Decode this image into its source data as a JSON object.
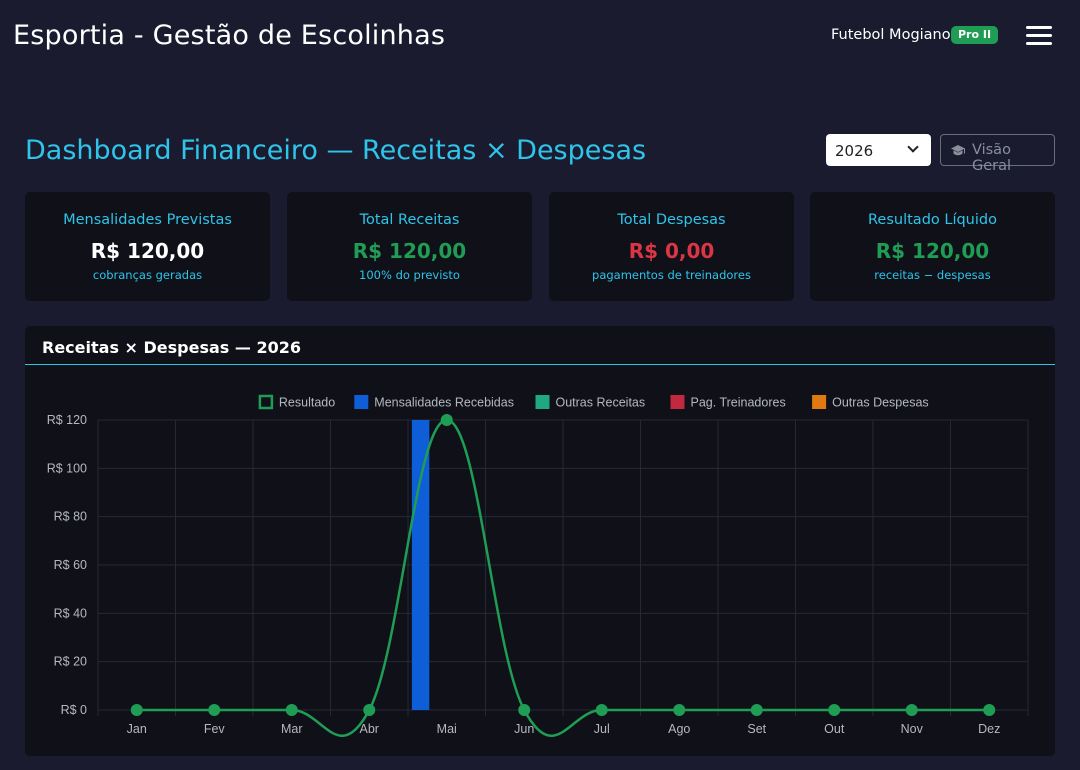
{
  "header": {
    "app_title": "Esportia - Gestão de Escolinhas",
    "club_name": "Futebol Mogiano",
    "plan_badge": "Pro II",
    "menu_icon": "hamburger-menu-icon"
  },
  "toolbar": {
    "page_title": "Dashboard Financeiro — Receitas × Despesas",
    "year_value": "2026",
    "overview_label": "Visão Geral",
    "overview_icon": "graduation-cap-icon"
  },
  "summary_cards": [
    {
      "label": "Mensalidades Previstas",
      "value": "R$ 120,00",
      "sub": "cobranças geradas",
      "value_color": "#ffffff"
    },
    {
      "label": "Total Receitas",
      "value": "R$ 120,00",
      "sub": "100% do previsto",
      "value_color": "#1f9d55"
    },
    {
      "label": "Total Despesas",
      "value": "R$ 0,00",
      "sub": "pagamentos de treinadores",
      "value_color": "#dc3545"
    },
    {
      "label": "Resultado Líquido",
      "value": "R$ 120,00",
      "sub": "receitas − despesas",
      "value_color": "#1f9d55"
    }
  ],
  "chart_section": {
    "title": "Receitas × Despesas — 2026"
  },
  "chart_data": {
    "type": "bar",
    "categories": [
      "Jan",
      "Fev",
      "Mar",
      "Abr",
      "Mai",
      "Jun",
      "Jul",
      "Ago",
      "Set",
      "Out",
      "Nov",
      "Dez"
    ],
    "series": [
      {
        "name": "Resultado",
        "type": "line",
        "color": "#1f9d55",
        "values": [
          0,
          0,
          0,
          0,
          120,
          0,
          0,
          0,
          0,
          0,
          0,
          0
        ]
      },
      {
        "name": "Mensalidades Recebidas",
        "type": "bar",
        "color": "#0d5ed7",
        "values": [
          0,
          0,
          0,
          0,
          120,
          0,
          0,
          0,
          0,
          0,
          0,
          0
        ]
      },
      {
        "name": "Outras Receitas",
        "type": "bar",
        "color": "#20a883",
        "values": [
          0,
          0,
          0,
          0,
          0,
          0,
          0,
          0,
          0,
          0,
          0,
          0
        ]
      },
      {
        "name": "Pag. Treinadores",
        "type": "bar",
        "color": "#c0293e",
        "values": [
          0,
          0,
          0,
          0,
          0,
          0,
          0,
          0,
          0,
          0,
          0,
          0
        ]
      },
      {
        "name": "Outras Despesas",
        "type": "bar",
        "color": "#e07a10",
        "values": [
          0,
          0,
          0,
          0,
          0,
          0,
          0,
          0,
          0,
          0,
          0,
          0
        ]
      }
    ],
    "yticks": [
      "R$ 0",
      "R$ 20",
      "R$ 40",
      "R$ 60",
      "R$ 80",
      "R$ 100",
      "R$ 120"
    ],
    "ylim": [
      0,
      120
    ],
    "grid": true,
    "legend": "top-center"
  }
}
